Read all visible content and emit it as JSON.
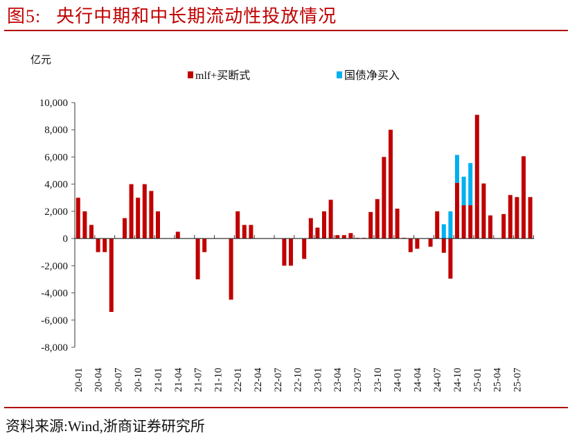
{
  "header": {
    "figure_no": "图5:",
    "title": "央行中期和中长期流动性投放情况"
  },
  "footer": {
    "source": "资料来源:Wind,浙商证券研究所"
  },
  "colors": {
    "accent": "#c00000",
    "series_red": "#c00000",
    "series_blue": "#00b0f0"
  },
  "chart_data": {
    "type": "bar",
    "stacked": true,
    "title": "央行中期和中长期流动性投放情况",
    "ylabel": "亿元",
    "xlabel": "",
    "ylim": [
      -8000,
      10000
    ],
    "yticks": [
      10000,
      8000,
      6000,
      4000,
      2000,
      0,
      -2000,
      -4000,
      -6000,
      -8000
    ],
    "ytick_labels": [
      "10,000",
      "8,000",
      "6,000",
      "4,000",
      "2,000",
      "0",
      "-2,000",
      "-4,000",
      "-6,000",
      "-8,000"
    ],
    "xtick_labels": [
      "20-01",
      "20-04",
      "20-07",
      "20-10",
      "21-01",
      "21-04",
      "21-07",
      "21-10",
      "22-01",
      "22-04",
      "22-07",
      "22-10",
      "23-01",
      "23-04",
      "23-07",
      "23-10",
      "24-01",
      "24-04",
      "24-07",
      "24-10",
      "25-01",
      "25-04",
      "25-07"
    ],
    "legend_position": "top",
    "categories": [
      "20-01",
      "20-02",
      "20-03",
      "20-04",
      "20-05",
      "20-06",
      "20-07",
      "20-08",
      "20-09",
      "20-10",
      "20-11",
      "20-12",
      "21-01",
      "21-02",
      "21-03",
      "21-04",
      "21-05",
      "21-06",
      "21-07",
      "21-08",
      "21-09",
      "21-10",
      "21-11",
      "21-12",
      "22-01",
      "22-02",
      "22-03",
      "22-04",
      "22-05",
      "22-06",
      "22-07",
      "22-08",
      "22-09",
      "22-10",
      "22-11",
      "22-12",
      "23-01",
      "23-02",
      "23-03",
      "23-04",
      "23-05",
      "23-06",
      "23-07",
      "23-08",
      "23-09",
      "23-10",
      "23-11",
      "23-12",
      "24-01",
      "24-02",
      "24-03",
      "24-04",
      "24-05",
      "24-06",
      "24-07",
      "24-08",
      "24-09",
      "24-10",
      "24-11",
      "24-12",
      "25-01",
      "25-02",
      "25-03",
      "25-04",
      "25-05",
      "25-06",
      "25-07",
      "25-08",
      "25-09"
    ],
    "series": [
      {
        "name": "mlf+买断式",
        "color": "#c00000",
        "values": [
          3000,
          2000,
          1000,
          -1000,
          -1000,
          -5400,
          0,
          1500,
          4000,
          3000,
          4000,
          3500,
          2000,
          0,
          0,
          500,
          0,
          0,
          -3000,
          -1000,
          0,
          0,
          0,
          -4500,
          2000,
          1000,
          1000,
          0,
          0,
          0,
          0,
          -2000,
          -2000,
          0,
          -1500,
          1500,
          800,
          2000,
          2850,
          250,
          250,
          400,
          50,
          50,
          1950,
          2900,
          6000,
          8000,
          2200,
          50,
          -1000,
          -750,
          0,
          -600,
          2000,
          -1050,
          -2950,
          4100,
          2450,
          2450,
          9100,
          4050,
          1700,
          0,
          1800,
          3200,
          3050,
          6050,
          3050
        ]
      },
      {
        "name": "国债净买入",
        "color": "#00b0f0",
        "values": [
          0,
          0,
          0,
          0,
          0,
          0,
          0,
          0,
          0,
          0,
          0,
          0,
          0,
          0,
          0,
          0,
          0,
          0,
          0,
          0,
          0,
          0,
          0,
          0,
          0,
          0,
          0,
          0,
          0,
          0,
          0,
          0,
          0,
          0,
          0,
          0,
          0,
          0,
          0,
          0,
          0,
          0,
          0,
          0,
          0,
          0,
          0,
          0,
          0,
          0,
          0,
          0,
          0,
          0,
          0,
          1050,
          2000,
          2050,
          2100,
          3100,
          0,
          0,
          0,
          0,
          0,
          0,
          0,
          0,
          0
        ]
      }
    ]
  }
}
